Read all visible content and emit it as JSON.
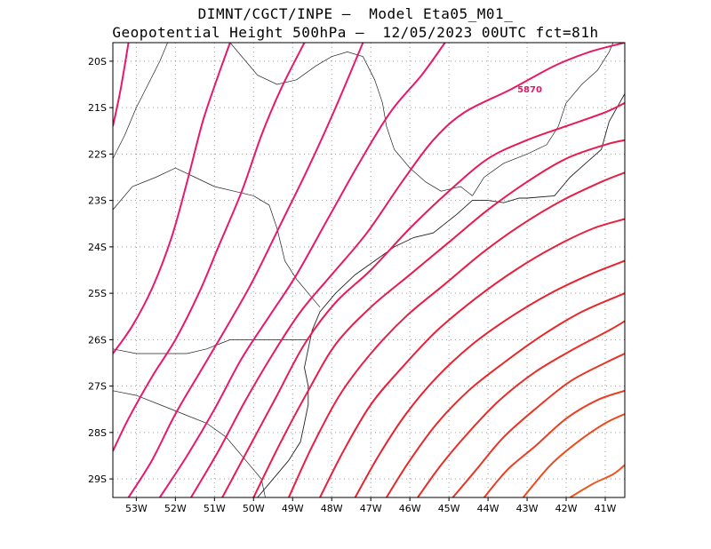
{
  "header": {
    "line1": "DIMNT/CGCT/INPE –  Model Eta05_M01_",
    "line2": "Geopotential Height 500hPa –  12/05/2023 00UTC fct=81h"
  },
  "map": {
    "lon_range": [
      -53.6,
      -40.5
    ],
    "lat_range": [
      -29.4,
      -19.6
    ],
    "x_ticks": [
      {
        "lon": -53,
        "label": "53W"
      },
      {
        "lon": -52,
        "label": "52W"
      },
      {
        "lon": -51,
        "label": "51W"
      },
      {
        "lon": -50,
        "label": "50W"
      },
      {
        "lon": -49,
        "label": "49W"
      },
      {
        "lon": -48,
        "label": "48W"
      },
      {
        "lon": -47,
        "label": "47W"
      },
      {
        "lon": -46,
        "label": "46W"
      },
      {
        "lon": -45,
        "label": "45W"
      },
      {
        "lon": -44,
        "label": "44W"
      },
      {
        "lon": -43,
        "label": "43W"
      },
      {
        "lon": -42,
        "label": "42W"
      },
      {
        "lon": -41,
        "label": "41W"
      }
    ],
    "y_ticks": [
      {
        "lat": -20,
        "label": "20S"
      },
      {
        "lat": -21,
        "label": "21S"
      },
      {
        "lat": -22,
        "label": "22S"
      },
      {
        "lat": -23,
        "label": "23S"
      },
      {
        "lat": -24,
        "label": "24S"
      },
      {
        "lat": -25,
        "label": "25S"
      },
      {
        "lat": -26,
        "label": "26S"
      },
      {
        "lat": -27,
        "label": "27S"
      },
      {
        "lat": -28,
        "label": "28S"
      },
      {
        "lat": -29,
        "label": "29S"
      }
    ],
    "contour_label": {
      "text": "5870",
      "lon": -43.0,
      "lat": -20.6
    },
    "contours": [
      {
        "color": "#e8186e",
        "points": [
          [
            -53.6,
            -21.4
          ],
          [
            -53.4,
            -20.6
          ],
          [
            -53.2,
            -19.6
          ]
        ]
      },
      {
        "color": "#e8186e",
        "points": [
          [
            -53.6,
            -26.3
          ],
          [
            -53.1,
            -25.7
          ],
          [
            -52.6,
            -24.9
          ],
          [
            -52.1,
            -23.8
          ],
          [
            -51.7,
            -22.6
          ],
          [
            -51.3,
            -21.3
          ],
          [
            -50.9,
            -20.3
          ],
          [
            -50.6,
            -19.6
          ]
        ]
      },
      {
        "color": "#e8186e",
        "points": [
          [
            -53.6,
            -28.4
          ],
          [
            -53.2,
            -27.7
          ],
          [
            -52.6,
            -26.8
          ],
          [
            -52.0,
            -26.0
          ],
          [
            -51.4,
            -25.0
          ],
          [
            -50.9,
            -24.0
          ],
          [
            -50.3,
            -22.8
          ],
          [
            -49.8,
            -21.6
          ],
          [
            -49.3,
            -20.6
          ],
          [
            -48.7,
            -19.6
          ]
        ]
      },
      {
        "color": "#e8186e",
        "points": [
          [
            -53.2,
            -29.4
          ],
          [
            -52.6,
            -28.6
          ],
          [
            -52.0,
            -27.6
          ],
          [
            -51.3,
            -26.6
          ],
          [
            -50.6,
            -25.6
          ],
          [
            -50.0,
            -24.7
          ],
          [
            -49.3,
            -23.5
          ],
          [
            -48.6,
            -22.3
          ],
          [
            -47.9,
            -21.0
          ],
          [
            -47.2,
            -19.6
          ]
        ]
      },
      {
        "color": "#e8186e",
        "points": [
          [
            -52.4,
            -29.4
          ],
          [
            -51.7,
            -28.5
          ],
          [
            -51.0,
            -27.5
          ],
          [
            -50.3,
            -26.4
          ],
          [
            -49.6,
            -25.5
          ],
          [
            -48.9,
            -24.6
          ],
          [
            -48.1,
            -23.4
          ],
          [
            -47.3,
            -22.2
          ],
          [
            -46.5,
            -21.1
          ],
          [
            -45.7,
            -20.3
          ],
          [
            -45.1,
            -19.6
          ]
        ]
      },
      {
        "color": "#e81a5e",
        "points": [
          [
            -51.6,
            -29.4
          ],
          [
            -50.9,
            -28.4
          ],
          [
            -50.2,
            -27.3
          ],
          [
            -49.5,
            -26.3
          ],
          [
            -48.8,
            -25.4
          ],
          [
            -48.0,
            -24.6
          ],
          [
            -47.1,
            -23.7
          ],
          [
            -46.2,
            -22.6
          ],
          [
            -45.4,
            -21.7
          ],
          [
            -44.6,
            -21.1
          ],
          [
            -43.4,
            -20.6
          ],
          [
            -42.3,
            -20.1
          ],
          [
            -41.4,
            -19.8
          ],
          [
            -40.5,
            -19.6
          ]
        ]
      },
      {
        "color": "#e81a55",
        "points": [
          [
            -50.8,
            -29.4
          ],
          [
            -50.1,
            -28.3
          ],
          [
            -49.4,
            -27.2
          ],
          [
            -48.7,
            -26.1
          ],
          [
            -47.9,
            -25.2
          ],
          [
            -47.0,
            -24.5
          ],
          [
            -46.0,
            -23.6
          ],
          [
            -45.0,
            -22.8
          ],
          [
            -44.0,
            -22.1
          ],
          [
            -43.0,
            -21.7
          ],
          [
            -42.0,
            -21.4
          ],
          [
            -41.0,
            -21.1
          ],
          [
            -40.5,
            -20.9
          ]
        ]
      },
      {
        "color": "#e81c4c",
        "points": [
          [
            -50.0,
            -29.4
          ],
          [
            -49.3,
            -28.2
          ],
          [
            -48.6,
            -27.1
          ],
          [
            -47.9,
            -26.1
          ],
          [
            -47.0,
            -25.3
          ],
          [
            -46.0,
            -24.6
          ],
          [
            -45.0,
            -23.9
          ],
          [
            -44.0,
            -23.2
          ],
          [
            -43.0,
            -22.6
          ],
          [
            -42.0,
            -22.1
          ],
          [
            -41.0,
            -21.8
          ],
          [
            -40.5,
            -21.7
          ]
        ]
      },
      {
        "color": "#e81e44",
        "points": [
          [
            -49.1,
            -29.4
          ],
          [
            -48.5,
            -28.3
          ],
          [
            -47.8,
            -27.2
          ],
          [
            -47.0,
            -26.3
          ],
          [
            -46.1,
            -25.5
          ],
          [
            -45.1,
            -24.8
          ],
          [
            -44.1,
            -24.1
          ],
          [
            -43.1,
            -23.5
          ],
          [
            -42.1,
            -23.0
          ],
          [
            -41.1,
            -22.6
          ],
          [
            -40.5,
            -22.4
          ]
        ]
      },
      {
        "color": "#e8203c",
        "points": [
          [
            -48.3,
            -29.4
          ],
          [
            -47.7,
            -28.4
          ],
          [
            -47.0,
            -27.4
          ],
          [
            -46.2,
            -26.6
          ],
          [
            -45.3,
            -25.8
          ],
          [
            -44.3,
            -25.1
          ],
          [
            -43.3,
            -24.5
          ],
          [
            -42.3,
            -24.0
          ],
          [
            -41.3,
            -23.6
          ],
          [
            -40.5,
            -23.4
          ]
        ]
      },
      {
        "color": "#e8222e",
        "points": [
          [
            -47.4,
            -29.4
          ],
          [
            -46.8,
            -28.5
          ],
          [
            -46.1,
            -27.6
          ],
          [
            -45.3,
            -26.8
          ],
          [
            -44.4,
            -26.1
          ],
          [
            -43.4,
            -25.5
          ],
          [
            -42.4,
            -25.0
          ],
          [
            -41.4,
            -24.6
          ],
          [
            -40.5,
            -24.3
          ]
        ]
      },
      {
        "color": "#e82828",
        "points": [
          [
            -46.6,
            -29.4
          ],
          [
            -46.0,
            -28.6
          ],
          [
            -45.3,
            -27.8
          ],
          [
            -44.5,
            -27.1
          ],
          [
            -43.6,
            -26.5
          ],
          [
            -42.6,
            -25.9
          ],
          [
            -41.6,
            -25.4
          ],
          [
            -40.5,
            -25.0
          ]
        ]
      },
      {
        "color": "#e82e26",
        "points": [
          [
            -45.8,
            -29.4
          ],
          [
            -45.2,
            -28.7
          ],
          [
            -44.5,
            -28.0
          ],
          [
            -43.7,
            -27.3
          ],
          [
            -42.8,
            -26.7
          ],
          [
            -41.8,
            -26.2
          ],
          [
            -40.9,
            -25.8
          ],
          [
            -40.5,
            -25.6
          ]
        ]
      },
      {
        "color": "#e83524",
        "points": [
          [
            -44.9,
            -29.4
          ],
          [
            -44.3,
            -28.8
          ],
          [
            -43.6,
            -28.1
          ],
          [
            -42.8,
            -27.5
          ],
          [
            -41.9,
            -26.9
          ],
          [
            -41.0,
            -26.5
          ],
          [
            -40.5,
            -26.3
          ]
        ]
      },
      {
        "color": "#ea3e22",
        "points": [
          [
            -44.1,
            -29.4
          ],
          [
            -43.5,
            -28.8
          ],
          [
            -42.8,
            -28.3
          ],
          [
            -42.0,
            -27.7
          ],
          [
            -41.2,
            -27.3
          ],
          [
            -40.5,
            -27.1
          ]
        ]
      },
      {
        "color": "#ec4a20",
        "points": [
          [
            -43.1,
            -29.4
          ],
          [
            -42.4,
            -28.7
          ],
          [
            -41.7,
            -28.2
          ],
          [
            -41.0,
            -27.8
          ],
          [
            -40.5,
            -27.6
          ]
        ]
      },
      {
        "color": "#ee561e",
        "points": [
          [
            -41.9,
            -29.4
          ],
          [
            -41.3,
            -29.1
          ],
          [
            -40.8,
            -28.9
          ],
          [
            -40.5,
            -28.7
          ]
        ]
      }
    ],
    "coastline": [
      [
        -40.5,
        -20.7
      ],
      [
        -40.9,
        -21.3
      ],
      [
        -41.0,
        -21.6
      ],
      [
        -41.1,
        -21.9
      ],
      [
        -41.5,
        -22.2
      ],
      [
        -41.9,
        -22.5
      ],
      [
        -42.3,
        -22.9
      ],
      [
        -43.0,
        -22.95
      ],
      [
        -43.2,
        -22.95
      ],
      [
        -43.6,
        -23.05
      ],
      [
        -44.0,
        -23.0
      ],
      [
        -44.4,
        -23.0
      ],
      [
        -44.8,
        -23.3
      ],
      [
        -45.1,
        -23.5
      ],
      [
        -45.4,
        -23.7
      ],
      [
        -45.9,
        -23.8
      ],
      [
        -46.4,
        -24.0
      ],
      [
        -46.9,
        -24.3
      ],
      [
        -47.4,
        -24.6
      ],
      [
        -47.9,
        -25.0
      ],
      [
        -48.3,
        -25.4
      ],
      [
        -48.5,
        -25.8
      ],
      [
        -48.6,
        -26.2
      ],
      [
        -48.7,
        -26.6
      ],
      [
        -48.6,
        -27.0
      ],
      [
        -48.6,
        -27.4
      ],
      [
        -48.7,
        -27.8
      ],
      [
        -48.8,
        -28.2
      ],
      [
        -49.1,
        -28.6
      ],
      [
        -49.4,
        -28.9
      ],
      [
        -49.8,
        -29.3
      ],
      [
        -49.9,
        -29.4
      ]
    ],
    "borders": [
      [
        [
          -53.6,
          -23.2
        ],
        [
          -53.1,
          -22.7
        ],
        [
          -52.5,
          -22.5
        ],
        [
          -52.0,
          -22.3
        ],
        [
          -51.5,
          -22.5
        ],
        [
          -51.0,
          -22.7
        ],
        [
          -50.5,
          -22.8
        ],
        [
          -50.0,
          -22.9
        ],
        [
          -49.6,
          -23.1
        ],
        [
          -49.4,
          -23.6
        ],
        [
          -49.2,
          -24.3
        ],
        [
          -48.9,
          -24.7
        ],
        [
          -48.5,
          -25.1
        ],
        [
          -48.3,
          -25.3
        ]
      ],
      [
        [
          -53.6,
          -26.2
        ],
        [
          -53.0,
          -26.3
        ],
        [
          -52.4,
          -26.3
        ],
        [
          -51.7,
          -26.3
        ],
        [
          -51.2,
          -26.2
        ],
        [
          -50.6,
          -26.0
        ],
        [
          -50.0,
          -26.0
        ],
        [
          -49.3,
          -26.0
        ],
        [
          -48.6,
          -26.0
        ]
      ],
      [
        [
          -53.6,
          -27.1
        ],
        [
          -53.0,
          -27.2
        ],
        [
          -52.4,
          -27.4
        ],
        [
          -51.8,
          -27.6
        ],
        [
          -51.2,
          -27.8
        ],
        [
          -50.7,
          -28.1
        ],
        [
          -50.2,
          -28.6
        ],
        [
          -49.8,
          -29.0
        ],
        [
          -49.7,
          -29.4
        ]
      ],
      [
        [
          -50.6,
          -19.6
        ],
        [
          -50.2,
          -20.0
        ],
        [
          -49.9,
          -20.3
        ],
        [
          -49.4,
          -20.5
        ],
        [
          -48.9,
          -20.4
        ],
        [
          -48.4,
          -20.1
        ],
        [
          -48.0,
          -19.9
        ],
        [
          -47.6,
          -19.8
        ],
        [
          -47.2,
          -19.9
        ],
        [
          -46.9,
          -20.4
        ],
        [
          -46.7,
          -20.9
        ],
        [
          -46.6,
          -21.4
        ],
        [
          -46.4,
          -21.9
        ],
        [
          -46.0,
          -22.3
        ],
        [
          -45.6,
          -22.6
        ],
        [
          -45.2,
          -22.8
        ],
        [
          -44.7,
          -22.7
        ],
        [
          -44.4,
          -22.9
        ]
      ],
      [
        [
          -44.4,
          -22.9
        ],
        [
          -44.1,
          -22.5
        ],
        [
          -43.6,
          -22.2
        ],
        [
          -43.0,
          -22.0
        ],
        [
          -42.5,
          -21.8
        ],
        [
          -42.2,
          -21.4
        ],
        [
          -42.0,
          -20.9
        ],
        [
          -41.6,
          -20.5
        ],
        [
          -41.2,
          -20.2
        ],
        [
          -40.9,
          -19.8
        ],
        [
          -40.8,
          -19.6
        ]
      ],
      [
        [
          -53.6,
          -22.1
        ],
        [
          -53.3,
          -21.6
        ],
        [
          -53.0,
          -21.0
        ],
        [
          -52.7,
          -20.5
        ],
        [
          -52.4,
          -20.0
        ],
        [
          -52.2,
          -19.6
        ]
      ]
    ]
  }
}
